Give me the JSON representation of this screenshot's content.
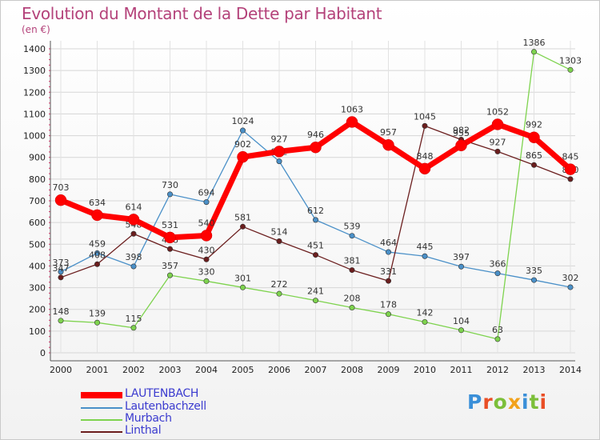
{
  "title": "Evolution du Montant de la Dette par Habitant",
  "unit": "(en €)",
  "brand": {
    "text": "Proxiti",
    "colors": [
      "#3a8fd8",
      "#e94e25",
      "#7cbf3a",
      "#f2a21c",
      "#3a8fd8",
      "#7cbf3a",
      "#e94e25"
    ]
  },
  "chart_data": {
    "type": "line",
    "x": [
      "2000",
      "2001",
      "2002",
      "2003",
      "2004",
      "2005",
      "2006",
      "2007",
      "2008",
      "2009",
      "2010",
      "2011",
      "2012",
      "2013",
      "2014"
    ],
    "ylim": [
      0,
      1400
    ],
    "yticks": [
      "0",
      "100",
      "200",
      "300",
      "400",
      "500",
      "600",
      "700",
      "800",
      "900",
      "1000",
      "1100",
      "1200",
      "1300",
      "1400"
    ],
    "grid": true,
    "legend_position": "bottom-left",
    "series": [
      {
        "name": "LAUTENBACH",
        "color": "#ff0000",
        "values": [
          703,
          634,
          614,
          531,
          540,
          902,
          927,
          946,
          1063,
          957,
          848,
          955,
          1052,
          992,
          845
        ]
      },
      {
        "name": "Lautenbachzell",
        "color": "#4a90c8",
        "values": [
          373,
          459,
          398,
          730,
          694,
          1024,
          882,
          612,
          539,
          464,
          445,
          397,
          366,
          335,
          302
        ]
      },
      {
        "name": "Murbach",
        "color": "#7ed34e",
        "values": [
          148,
          139,
          115,
          357,
          330,
          301,
          272,
          241,
          208,
          178,
          142,
          104,
          63,
          1386,
          1303
        ]
      },
      {
        "name": "Linthal",
        "color": "#6b1e1e",
        "values": [
          347,
          408,
          548,
          478,
          430,
          581,
          514,
          451,
          381,
          331,
          1045,
          982,
          927,
          865,
          800
        ]
      }
    ]
  }
}
